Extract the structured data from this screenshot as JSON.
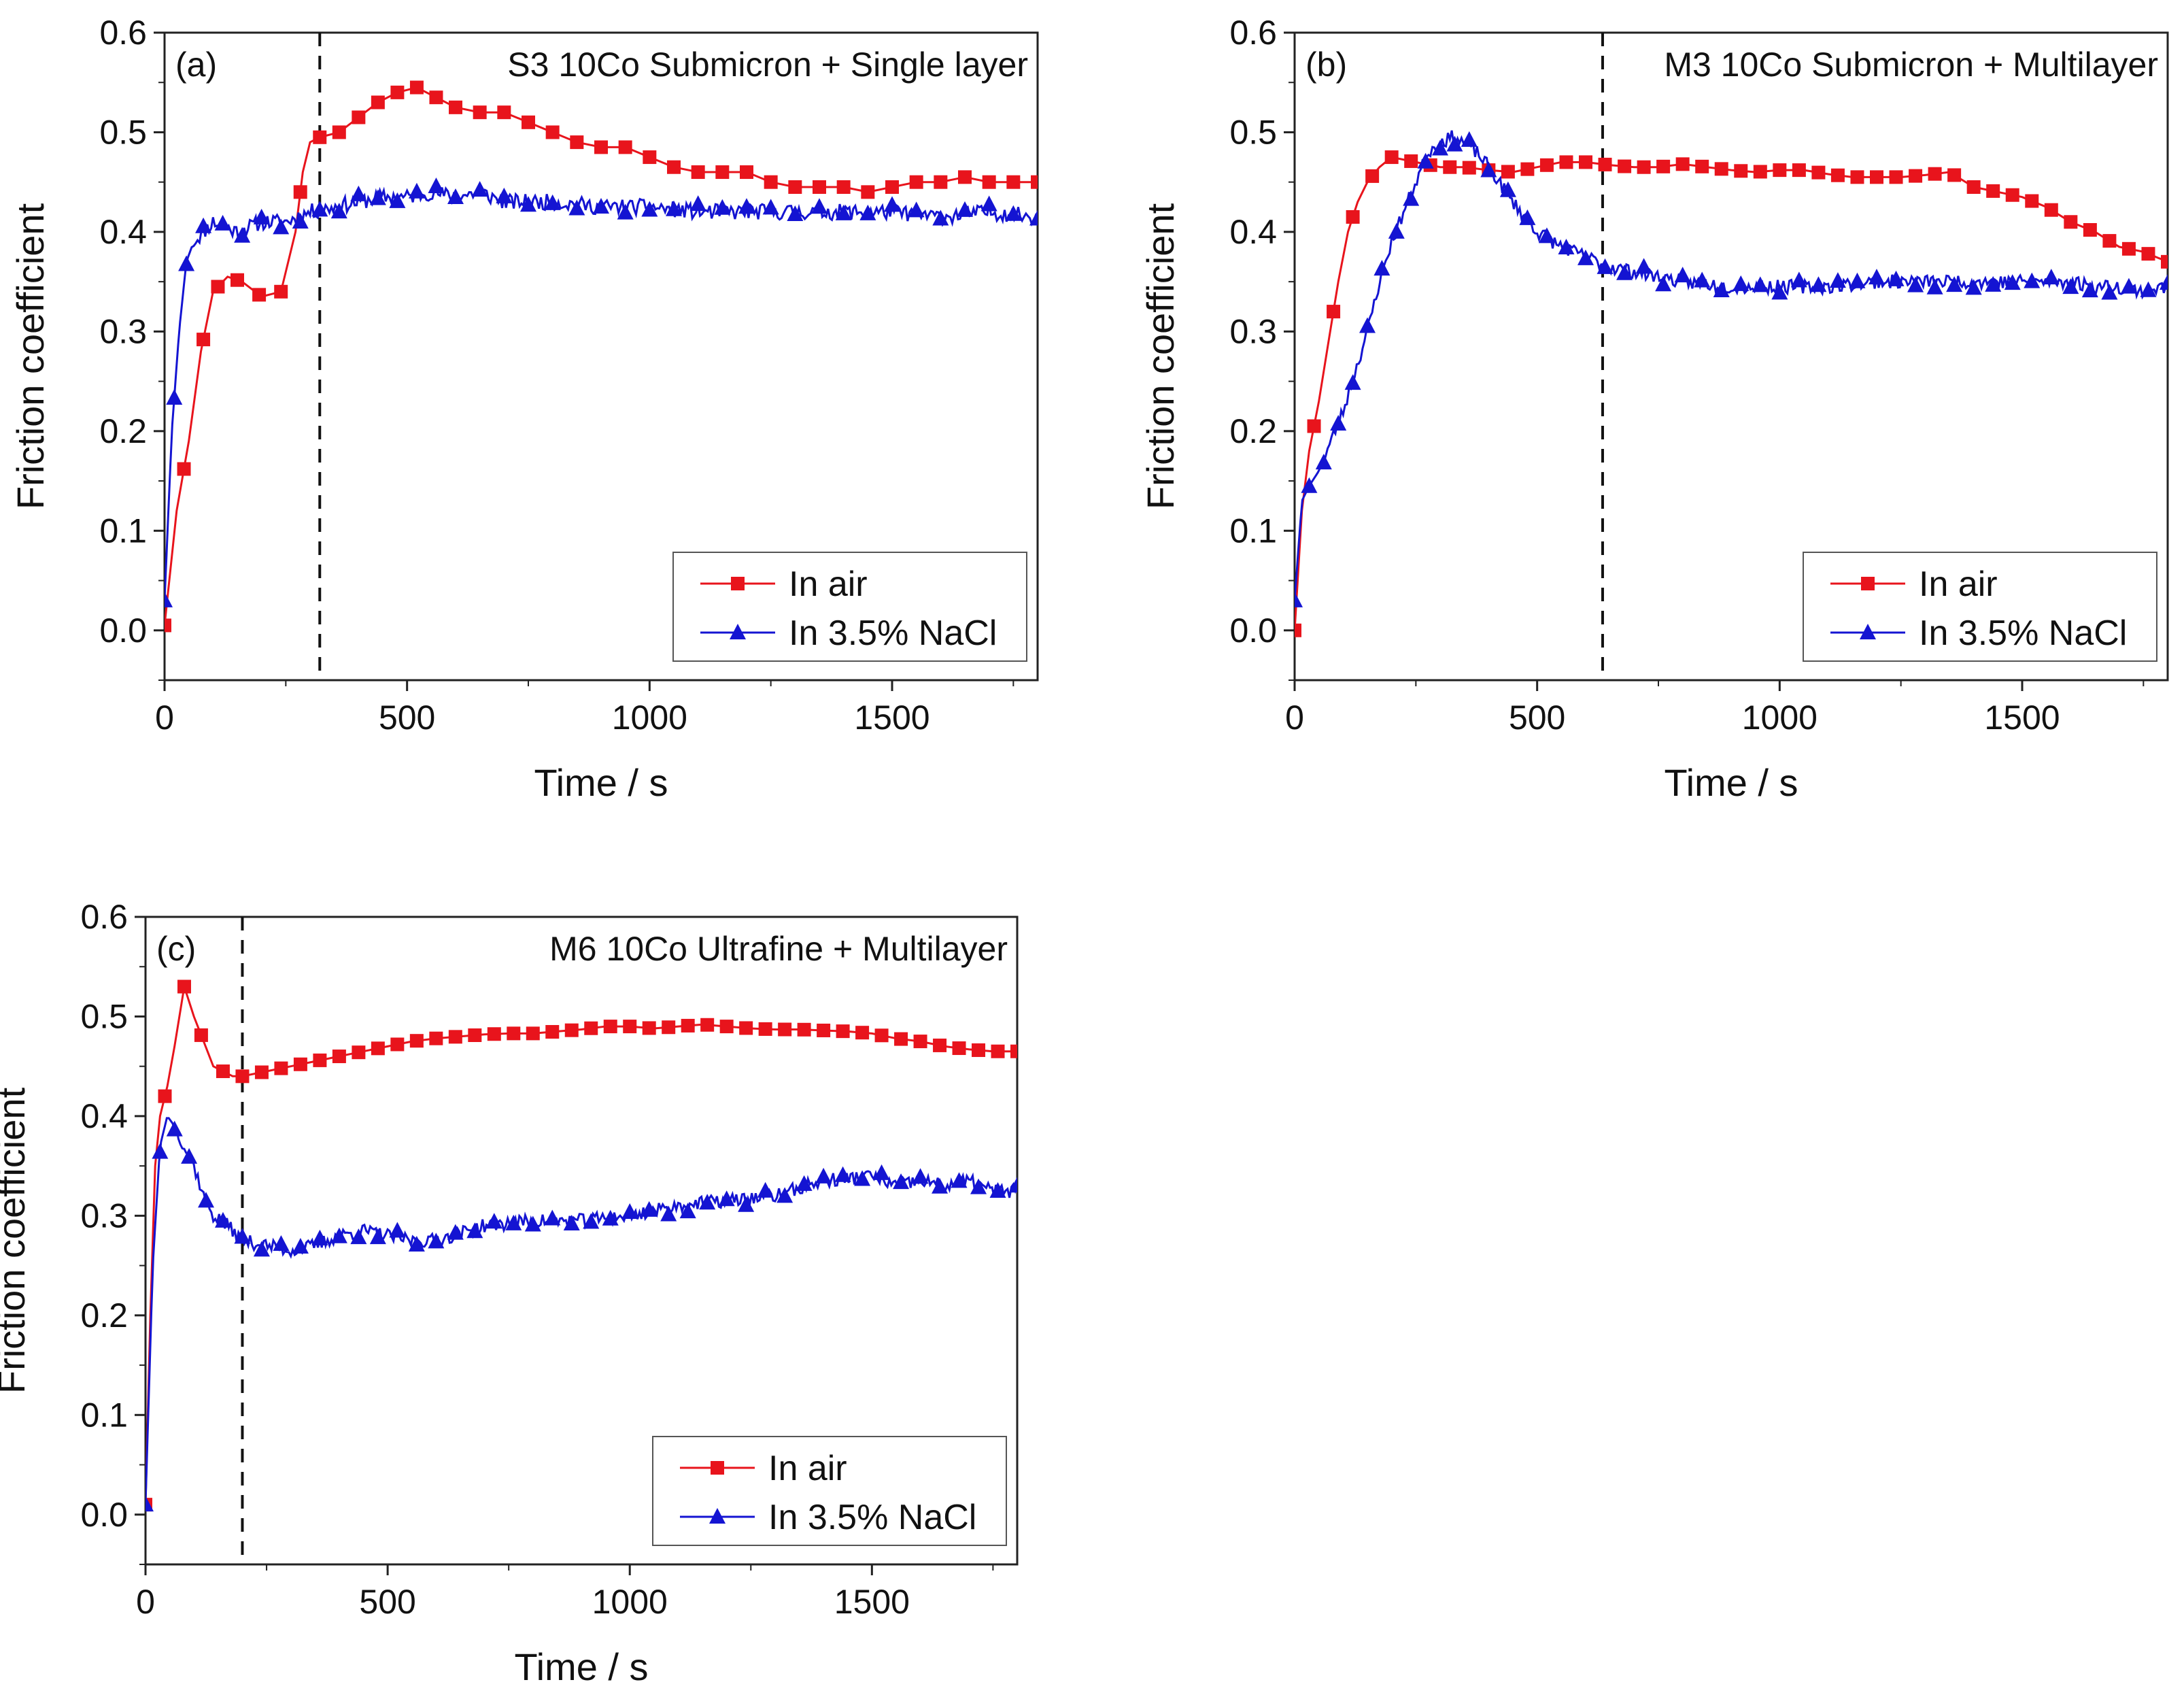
{
  "chart_data": [
    {
      "type": "line",
      "panel_label": "(a)",
      "title": "S3 10Co Submicron + Single layer",
      "xlabel": "Time / s",
      "ylabel": "Friction coefficient",
      "xlim": [
        0,
        1800
      ],
      "ylim": [
        -0.05,
        0.6
      ],
      "xticks": [
        0,
        500,
        1000,
        1500
      ],
      "xtick_labels": [
        "0",
        "500",
        "1000",
        "1500"
      ],
      "yticks": [
        0.0,
        0.1,
        0.2,
        0.3,
        0.4,
        0.5,
        0.6
      ],
      "ytick_labels": [
        "0.0",
        "0.1",
        "0.2",
        "0.3",
        "0.4",
        "0.5",
        "0.6"
      ],
      "dashed_line_x": 320,
      "legend_position": "bottom-right",
      "series": [
        {
          "name": "In air",
          "color": "#e8141c",
          "marker": "square",
          "x": [
            0,
            25,
            50,
            75,
            100,
            130,
            160,
            200,
            240,
            270,
            285,
            300,
            320,
            360,
            400,
            440,
            480,
            520,
            560,
            600,
            650,
            700,
            750,
            800,
            850,
            900,
            950,
            1000,
            1050,
            1100,
            1150,
            1200,
            1250,
            1300,
            1350,
            1400,
            1450,
            1500,
            1550,
            1600,
            1650,
            1700,
            1750,
            1800
          ],
          "y": [
            0.005,
            0.12,
            0.19,
            0.28,
            0.34,
            0.355,
            0.35,
            0.335,
            0.34,
            0.4,
            0.46,
            0.49,
            0.495,
            0.5,
            0.515,
            0.53,
            0.54,
            0.545,
            0.535,
            0.525,
            0.52,
            0.52,
            0.51,
            0.5,
            0.49,
            0.485,
            0.485,
            0.475,
            0.465,
            0.46,
            0.46,
            0.46,
            0.45,
            0.445,
            0.445,
            0.445,
            0.44,
            0.445,
            0.45,
            0.45,
            0.455,
            0.45,
            0.45,
            0.45
          ],
          "marker_x": [
            0,
            40,
            80,
            110,
            150,
            195,
            240,
            280,
            320,
            360,
            400,
            440,
            480,
            520,
            560,
            600,
            650,
            700,
            750,
            800,
            850,
            900,
            950,
            1000,
            1050,
            1100,
            1150,
            1200,
            1250,
            1300,
            1350,
            1400,
            1450,
            1500,
            1550,
            1600,
            1650,
            1700,
            1750,
            1800
          ]
        },
        {
          "name": "In 3.5% NaCl",
          "color": "#1414d2",
          "marker": "triangle",
          "base_x": [
            0,
            15,
            30,
            45,
            60,
            80,
            100,
            150,
            200,
            250,
            300,
            350,
            400,
            450,
            500,
            550,
            600,
            650,
            700,
            750,
            800,
            900,
            1000,
            1100,
            1200,
            1300,
            1400,
            1500,
            1600,
            1700,
            1800
          ],
          "base_y": [
            0.03,
            0.2,
            0.3,
            0.37,
            0.39,
            0.4,
            0.41,
            0.4,
            0.41,
            0.41,
            0.42,
            0.425,
            0.43,
            0.435,
            0.435,
            0.44,
            0.435,
            0.44,
            0.43,
            0.43,
            0.43,
            0.425,
            0.425,
            0.42,
            0.42,
            0.42,
            0.42,
            0.42,
            0.415,
            0.42,
            0.415
          ],
          "noise": 0.008,
          "seed": 11,
          "marker_x": [
            0,
            20,
            45,
            80,
            120,
            160,
            200,
            240,
            280,
            320,
            360,
            400,
            440,
            480,
            520,
            560,
            600,
            650,
            700,
            750,
            800,
            850,
            900,
            950,
            1000,
            1050,
            1100,
            1150,
            1200,
            1250,
            1300,
            1350,
            1400,
            1450,
            1500,
            1550,
            1600,
            1650,
            1700,
            1750,
            1800
          ]
        }
      ]
    },
    {
      "type": "line",
      "panel_label": "(b)",
      "title": "M3 10Co Submicron + Multilayer",
      "xlabel": "Time / s",
      "ylabel": "Friction coefficient",
      "xlim": [
        0,
        1800
      ],
      "ylim": [
        -0.05,
        0.6
      ],
      "xticks": [
        0,
        500,
        1000,
        1500
      ],
      "xtick_labels": [
        "0",
        "500",
        "1000",
        "1500"
      ],
      "yticks": [
        0.0,
        0.1,
        0.2,
        0.3,
        0.4,
        0.5,
        0.6
      ],
      "ytick_labels": [
        "0.0",
        "0.1",
        "0.2",
        "0.3",
        "0.4",
        "0.5",
        "0.6"
      ],
      "dashed_line_x": 635,
      "legend_position": "bottom-right",
      "series": [
        {
          "name": "In air",
          "color": "#e8141c",
          "marker": "square",
          "x": [
            0,
            15,
            30,
            50,
            70,
            90,
            110,
            130,
            150,
            175,
            200,
            250,
            300,
            350,
            400,
            450,
            500,
            550,
            600,
            650,
            700,
            750,
            800,
            850,
            900,
            950,
            1000,
            1050,
            1100,
            1150,
            1200,
            1250,
            1300,
            1350,
            1400,
            1450,
            1500,
            1550,
            1600,
            1650,
            1700,
            1750,
            1800
          ],
          "y": [
            0.0,
            0.12,
            0.18,
            0.23,
            0.29,
            0.35,
            0.4,
            0.43,
            0.45,
            0.465,
            0.475,
            0.47,
            0.465,
            0.465,
            0.462,
            0.46,
            0.465,
            0.47,
            0.47,
            0.467,
            0.465,
            0.465,
            0.468,
            0.465,
            0.462,
            0.46,
            0.462,
            0.462,
            0.458,
            0.455,
            0.455,
            0.455,
            0.457,
            0.46,
            0.445,
            0.44,
            0.435,
            0.425,
            0.41,
            0.4,
            0.385,
            0.38,
            0.37
          ],
          "marker_x": [
            0,
            40,
            80,
            120,
            160,
            200,
            240,
            280,
            320,
            360,
            400,
            440,
            480,
            520,
            560,
            600,
            640,
            680,
            720,
            760,
            800,
            840,
            880,
            920,
            960,
            1000,
            1040,
            1080,
            1120,
            1160,
            1200,
            1240,
            1280,
            1320,
            1360,
            1400,
            1440,
            1480,
            1520,
            1560,
            1600,
            1640,
            1680,
            1720,
            1760,
            1800
          ]
        },
        {
          "name": "In 3.5% NaCl",
          "color": "#1414d2",
          "marker": "triangle",
          "base_x": [
            0,
            15,
            30,
            50,
            75,
            100,
            125,
            150,
            175,
            200,
            225,
            250,
            275,
            300,
            325,
            350,
            375,
            400,
            450,
            500,
            550,
            600,
            650,
            700,
            750,
            800,
            900,
            1000,
            1100,
            1200,
            1300,
            1400,
            1500,
            1600,
            1650,
            1700,
            1750,
            1800
          ],
          "base_y": [
            0.03,
            0.13,
            0.145,
            0.16,
            0.19,
            0.22,
            0.26,
            0.3,
            0.35,
            0.39,
            0.42,
            0.45,
            0.48,
            0.49,
            0.495,
            0.49,
            0.48,
            0.465,
            0.43,
            0.4,
            0.385,
            0.375,
            0.365,
            0.36,
            0.355,
            0.35,
            0.345,
            0.345,
            0.345,
            0.35,
            0.35,
            0.35,
            0.35,
            0.35,
            0.345,
            0.345,
            0.34,
            0.345
          ],
          "noise": 0.007,
          "seed": 23,
          "marker_x": [
            0,
            30,
            60,
            90,
            120,
            150,
            180,
            210,
            240,
            270,
            300,
            330,
            360,
            400,
            440,
            480,
            520,
            560,
            600,
            640,
            680,
            720,
            760,
            800,
            840,
            880,
            920,
            960,
            1000,
            1040,
            1080,
            1120,
            1160,
            1200,
            1240,
            1280,
            1320,
            1360,
            1400,
            1440,
            1480,
            1520,
            1560,
            1600,
            1640,
            1680,
            1720,
            1760,
            1800
          ]
        }
      ]
    },
    {
      "type": "line",
      "panel_label": "(c)",
      "title": "M6 10Co Ultrafine + Multilayer",
      "xlabel": "Time / s",
      "ylabel": "Friction coefficient",
      "xlim": [
        0,
        1800
      ],
      "ylim": [
        -0.05,
        0.6
      ],
      "xticks": [
        0,
        500,
        1000,
        1500
      ],
      "xtick_labels": [
        "0",
        "500",
        "1000",
        "1500"
      ],
      "yticks": [
        0.0,
        0.1,
        0.2,
        0.3,
        0.4,
        0.5,
        0.6
      ],
      "ytick_labels": [
        "0.0",
        "0.1",
        "0.2",
        "0.3",
        "0.4",
        "0.5",
        "0.6"
      ],
      "dashed_line_x": 200,
      "legend_position": "bottom-right",
      "series": [
        {
          "name": "In air",
          "color": "#e8141c",
          "marker": "square",
          "x": [
            0,
            10,
            20,
            30,
            45,
            60,
            80,
            100,
            120,
            140,
            160,
            180,
            200,
            250,
            300,
            350,
            400,
            450,
            500,
            550,
            600,
            650,
            700,
            750,
            800,
            850,
            900,
            950,
            1000,
            1050,
            1100,
            1150,
            1200,
            1250,
            1300,
            1350,
            1400,
            1450,
            1500,
            1550,
            1600,
            1650,
            1700,
            1750,
            1800
          ],
          "y": [
            0.01,
            0.2,
            0.35,
            0.4,
            0.43,
            0.47,
            0.53,
            0.5,
            0.475,
            0.45,
            0.445,
            0.44,
            0.44,
            0.445,
            0.45,
            0.455,
            0.46,
            0.465,
            0.47,
            0.475,
            0.478,
            0.48,
            0.482,
            0.483,
            0.483,
            0.485,
            0.487,
            0.49,
            0.49,
            0.488,
            0.49,
            0.492,
            0.49,
            0.488,
            0.487,
            0.487,
            0.486,
            0.485,
            0.483,
            0.478,
            0.475,
            0.47,
            0.467,
            0.465,
            0.465
          ],
          "marker_x": [
            0,
            40,
            80,
            115,
            160,
            200,
            240,
            280,
            320,
            360,
            400,
            440,
            480,
            520,
            560,
            600,
            640,
            680,
            720,
            760,
            800,
            840,
            880,
            920,
            960,
            1000,
            1040,
            1080,
            1120,
            1160,
            1200,
            1240,
            1280,
            1320,
            1360,
            1400,
            1440,
            1480,
            1520,
            1560,
            1600,
            1640,
            1680,
            1720,
            1760,
            1800
          ]
        },
        {
          "name": "In 3.5% NaCl",
          "color": "#1414d2",
          "marker": "triangle",
          "base_x": [
            0,
            15,
            30,
            45,
            60,
            80,
            100,
            120,
            140,
            170,
            200,
            250,
            300,
            350,
            400,
            450,
            500,
            550,
            600,
            700,
            800,
            900,
            1000,
            1100,
            1200,
            1300,
            1400,
            1500,
            1550,
            1600,
            1650,
            1700,
            1750,
            1800
          ],
          "base_y": [
            0.01,
            0.25,
            0.37,
            0.4,
            0.39,
            0.37,
            0.35,
            0.32,
            0.3,
            0.29,
            0.275,
            0.27,
            0.265,
            0.27,
            0.28,
            0.285,
            0.28,
            0.275,
            0.275,
            0.29,
            0.295,
            0.295,
            0.3,
            0.31,
            0.315,
            0.32,
            0.335,
            0.34,
            0.33,
            0.335,
            0.33,
            0.335,
            0.325,
            0.325
          ],
          "noise": 0.007,
          "seed": 37,
          "marker_x": [
            0,
            30,
            60,
            90,
            125,
            160,
            200,
            240,
            280,
            320,
            360,
            400,
            440,
            480,
            520,
            560,
            600,
            640,
            680,
            720,
            760,
            800,
            840,
            880,
            920,
            960,
            1000,
            1040,
            1080,
            1120,
            1160,
            1200,
            1240,
            1280,
            1320,
            1360,
            1400,
            1440,
            1480,
            1520,
            1560,
            1600,
            1640,
            1680,
            1720,
            1760,
            1800
          ]
        }
      ]
    }
  ]
}
